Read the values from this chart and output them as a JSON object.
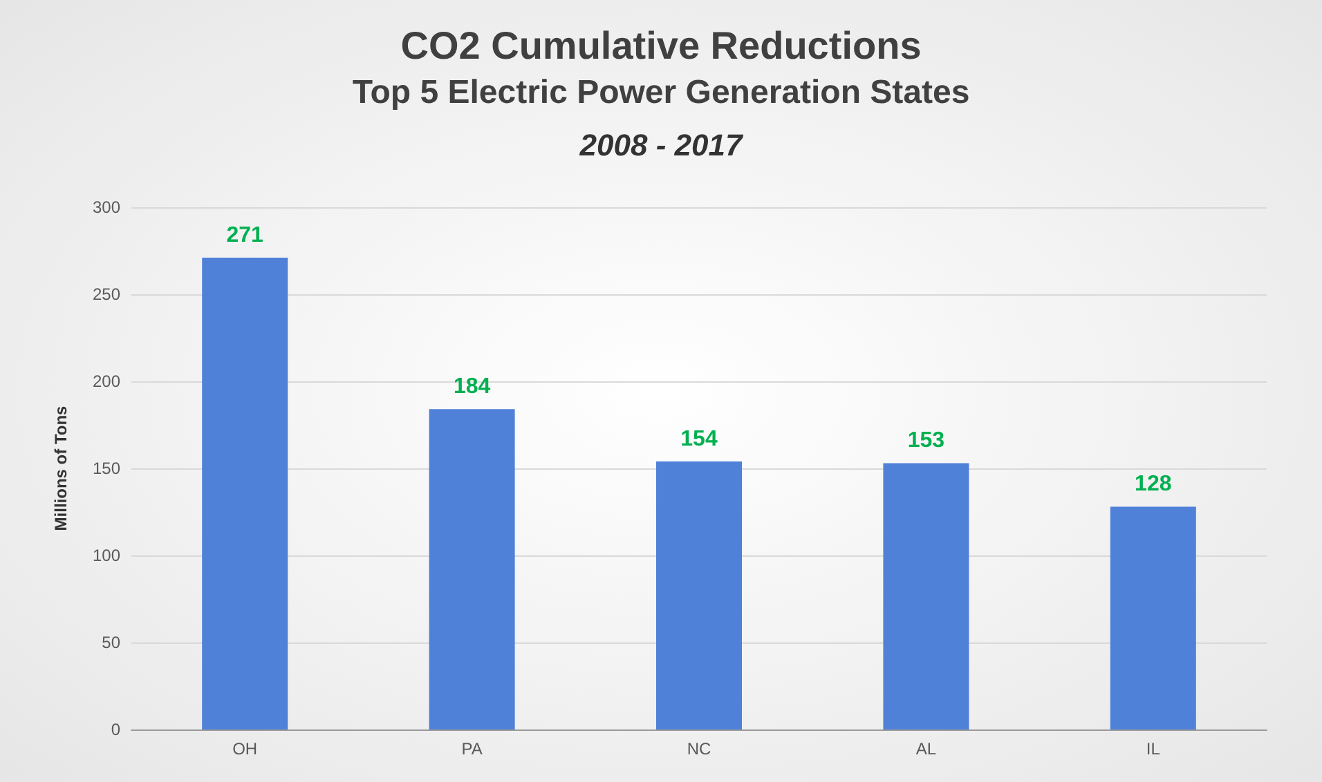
{
  "chart_data": {
    "type": "bar",
    "title": "CO2 Cumulative Reductions",
    "subtitle": "Top 5 Electric Power Generation States",
    "annotations": [
      "2008 - 2017"
    ],
    "ylabel": "Millions of Tons",
    "categories": [
      "OH",
      "PA",
      "NC",
      "AL",
      "IL"
    ],
    "values": [
      271,
      184,
      154,
      153,
      128
    ],
    "color": "#4f81d9",
    "ylim": [
      0,
      300
    ],
    "yticks": [
      0,
      50,
      100,
      150,
      200,
      250,
      300
    ],
    "grid": "y",
    "data_labels": true
  }
}
